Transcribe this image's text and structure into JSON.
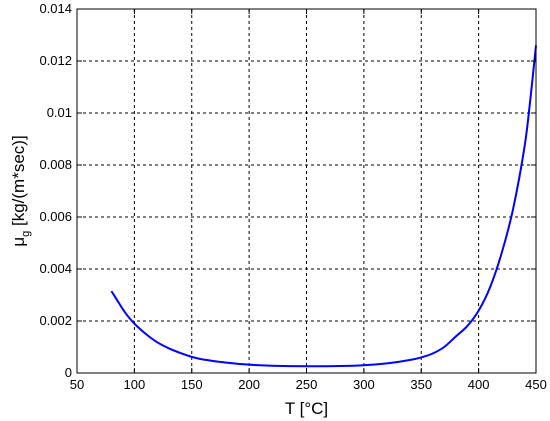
{
  "chart_data": {
    "type": "line",
    "title": "",
    "xlabel": "T [°C]",
    "ylabel": {
      "symbol": "μ",
      "subscript": "g",
      "units": " [kg/(m*sec)]"
    },
    "xlim": [
      50,
      450
    ],
    "ylim": [
      0,
      0.014
    ],
    "x_ticks": [
      50,
      100,
      150,
      200,
      250,
      300,
      350,
      400,
      450
    ],
    "y_ticks": [
      0,
      0.002,
      0.004,
      0.006,
      0.008,
      0.01,
      0.012,
      0.014
    ],
    "x_tick_labels": [
      "50",
      "100",
      "150",
      "200",
      "250",
      "300",
      "350",
      "400",
      "450"
    ],
    "y_tick_labels": [
      "0",
      "0.002",
      "0.004",
      "0.006",
      "0.008",
      "0.01",
      "0.012",
      "0.014"
    ],
    "grid": true,
    "grid_style": "dashed",
    "series": [
      {
        "color": "#0000ff",
        "x": [
          80,
          85,
          90,
          95,
          100,
          110,
          120,
          130,
          140,
          150,
          160,
          180,
          200,
          220,
          250,
          280,
          300,
          320,
          340,
          350,
          360,
          370,
          380,
          390,
          400,
          410,
          420,
          430,
          440,
          445,
          450
        ],
        "y": [
          0.00315,
          0.0028,
          0.00245,
          0.00215,
          0.0019,
          0.0015,
          0.00118,
          0.00095,
          0.00077,
          0.00062,
          0.00052,
          0.0004,
          0.00032,
          0.00028,
          0.00026,
          0.00027,
          0.0003,
          0.00037,
          0.0005,
          0.0006,
          0.00075,
          0.001,
          0.0014,
          0.0018,
          0.0024,
          0.0033,
          0.0046,
          0.0063,
          0.0087,
          0.0105,
          0.0126
        ]
      }
    ]
  }
}
